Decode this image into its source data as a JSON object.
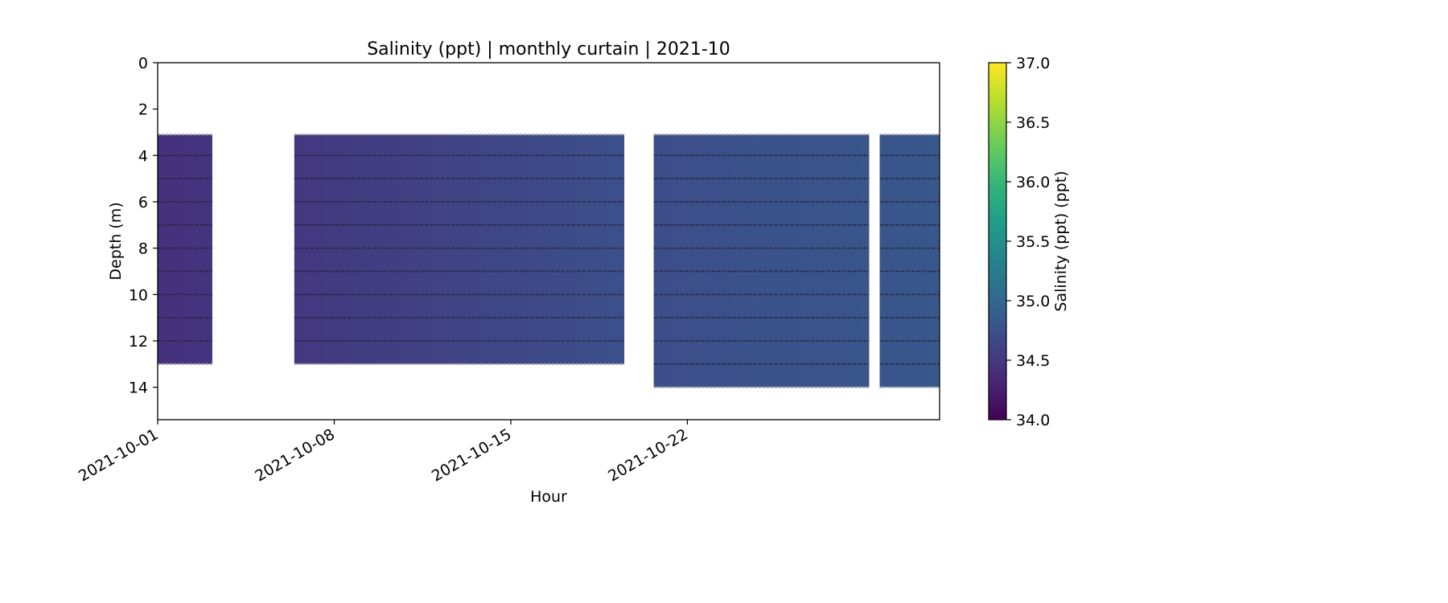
{
  "chart_data": {
    "type": "heatmap",
    "title": "Salinity (ppt) | monthly curtain | 2021-10",
    "xlabel": "Hour",
    "ylabel": "Depth (m)",
    "x_range": [
      "2021-10-01",
      "2021-11-01"
    ],
    "x_ticks": [
      "2021-10-01",
      "2021-10-08",
      "2021-10-15",
      "2021-10-22"
    ],
    "ylim": [
      0,
      15.4
    ],
    "y_inverted": true,
    "y_ticks": [
      0,
      2,
      4,
      6,
      8,
      10,
      12,
      14
    ],
    "colorbar": {
      "label": "Salinity (ppt) (ppt)",
      "colormap": "viridis",
      "range": [
        34.0,
        37.0
      ],
      "ticks": [
        "34.0",
        "34.5",
        "35.0",
        "35.5",
        "36.0",
        "36.5",
        "37.0"
      ]
    },
    "sample_depths_m": [
      4,
      5,
      6,
      7,
      8,
      9,
      10,
      11,
      12,
      13
    ],
    "segments": [
      {
        "start": "2021-10-01T00:00",
        "end": "2021-10-03T04:00",
        "depth_top": 3.1,
        "depth_bottom": 13.0,
        "salinity_start": 34.42,
        "salinity_end": 34.45
      },
      {
        "start": "2021-10-06T10:00",
        "end": "2021-10-19T12:00",
        "depth_top": 3.1,
        "depth_bottom": 13.0,
        "salinity_start": 34.48,
        "salinity_end": 34.74
      },
      {
        "start": "2021-10-20T16:00",
        "end": "2021-10-29T05:00",
        "depth_top": 3.1,
        "depth_bottom": 14.0,
        "salinity_start": 34.72,
        "salinity_end": 34.8
      },
      {
        "start": "2021-10-29T15:00",
        "end": "2021-11-01T00:00",
        "depth_top": 3.1,
        "depth_bottom": 14.0,
        "salinity_start": 34.8,
        "salinity_end": 34.82
      }
    ]
  }
}
